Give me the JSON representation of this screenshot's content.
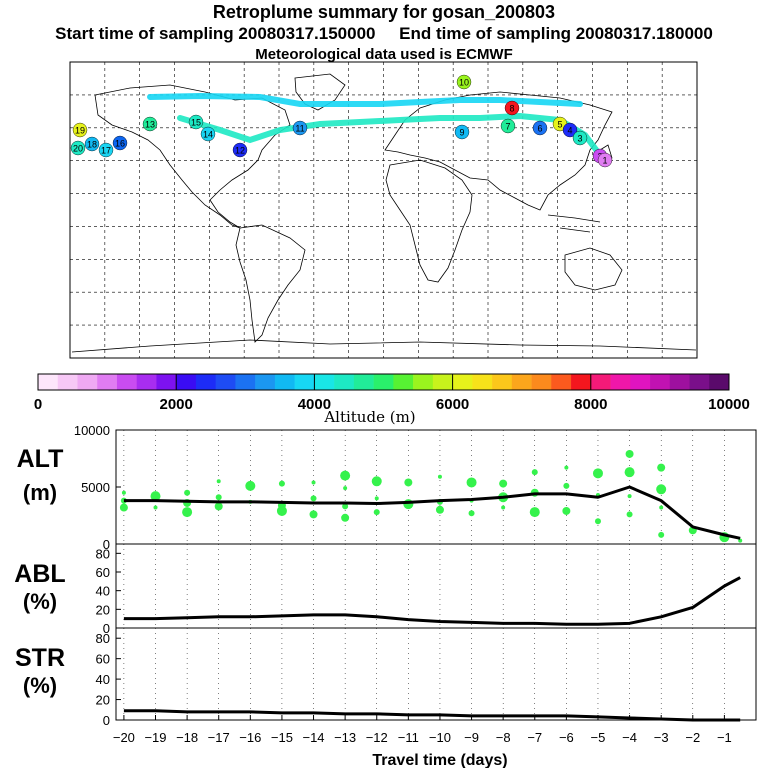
{
  "header": {
    "title": "Retroplume summary for gosan_200803",
    "sampling_line": "Start time of sampling 20080317.150000     End time of sampling 20080317.180000",
    "met_line": "Meteorological data used is ECMWF"
  },
  "colorbar": {
    "label": "Altitude (m)",
    "ticks": [
      "0",
      "2000",
      "4000",
      "6000",
      "8000",
      "10000"
    ],
    "colors": [
      "#fde6fb",
      "#f7c8f6",
      "#efa9f3",
      "#e07cf2",
      "#c94cf1",
      "#a82df0",
      "#7d12f0",
      "#3a0cf4",
      "#1d2cf7",
      "#1e4cf4",
      "#1b72f2",
      "#1b97f1",
      "#11b9f3",
      "#17d7f4",
      "#19e6e6",
      "#1de9c4",
      "#21ec99",
      "#2af06b",
      "#57f233",
      "#9af41e",
      "#c8f31c",
      "#e6f21b",
      "#f7e21a",
      "#fcc71b",
      "#fca61c",
      "#fc8a1d",
      "#fc5a1e",
      "#f4161e",
      "#f41a78",
      "#ef17a9",
      "#e014c0",
      "#c112b2",
      "#9e109f",
      "#7a0f8a",
      "#5a0a6b"
    ]
  },
  "map_plumes": [
    {
      "label": "16",
      "c": "#0d66f0"
    },
    {
      "label": "17",
      "c": "#1ad4f2"
    },
    {
      "label": "18",
      "c": "#11b9f3"
    },
    {
      "label": "19",
      "c": "#e6f21b"
    },
    {
      "label": "20",
      "c": "#1de9c4"
    },
    {
      "label": "15",
      "c": "#1de9c4"
    },
    {
      "label": "14",
      "c": "#1ad4f2"
    },
    {
      "label": "13",
      "c": "#21ec99"
    },
    {
      "label": "12",
      "c": "#1d2cf7"
    },
    {
      "label": "11",
      "c": "#1b97f1"
    },
    {
      "label": "10",
      "c": "#9af41e"
    },
    {
      "label": "9",
      "c": "#11b9f3"
    },
    {
      "label": "8",
      "c": "#f4161e"
    },
    {
      "label": "7",
      "c": "#21ec99"
    },
    {
      "label": "6",
      "c": "#1b72f2"
    },
    {
      "label": "5",
      "c": "#e6f21b"
    },
    {
      "label": "4",
      "c": "#1d2cf7"
    },
    {
      "label": "3",
      "c": "#1de9c4"
    },
    {
      "label": "2",
      "c": "#c94cf1"
    },
    {
      "label": "1",
      "c": "#e07cf2"
    }
  ],
  "chart_data": [
    {
      "type": "line",
      "panel": "ALT",
      "ylabel_lines": [
        "ALT",
        "(m)"
      ],
      "ylim": [
        0,
        10000
      ],
      "yticks": [
        0,
        5000,
        10000
      ],
      "ytick_labels": [
        "0",
        "5000",
        "10000"
      ],
      "x": [
        -20,
        -19,
        -18,
        -17,
        -16,
        -15,
        -14,
        -13,
        -12,
        -11,
        -10,
        -9,
        -8,
        -7,
        -6,
        -5,
        -4,
        -3,
        -2,
        -1,
        -0.5
      ],
      "values": [
        3800,
        3800,
        3750,
        3700,
        3700,
        3650,
        3600,
        3600,
        3550,
        3650,
        3800,
        3900,
        4100,
        4400,
        4400,
        4100,
        5000,
        3800,
        1500,
        800,
        500
      ],
      "scatter": [
        [
          -20,
          4500
        ],
        [
          -20,
          3800
        ],
        [
          -20,
          3200
        ],
        [
          -19,
          4200
        ],
        [
          -19,
          3200
        ],
        [
          -18,
          4500
        ],
        [
          -18,
          3600
        ],
        [
          -18,
          2800
        ],
        [
          -17,
          5500
        ],
        [
          -17,
          4100
        ],
        [
          -17,
          3300
        ],
        [
          -16,
          5100
        ],
        [
          -16,
          3700
        ],
        [
          -15,
          5300
        ],
        [
          -15,
          3400
        ],
        [
          -15,
          2900
        ],
        [
          -14,
          5400
        ],
        [
          -14,
          4000
        ],
        [
          -14,
          2600
        ],
        [
          -13,
          6000
        ],
        [
          -13,
          4900
        ],
        [
          -13,
          3300
        ],
        [
          -13,
          2300
        ],
        [
          -12,
          5500
        ],
        [
          -12,
          4000
        ],
        [
          -12,
          2800
        ],
        [
          -11,
          5400
        ],
        [
          -11,
          3500
        ],
        [
          -10,
          5900
        ],
        [
          -10,
          3700
        ],
        [
          -10,
          3000
        ],
        [
          -9,
          5400
        ],
        [
          -9,
          3800
        ],
        [
          -9,
          2700
        ],
        [
          -8,
          5300
        ],
        [
          -8,
          4100
        ],
        [
          -8,
          3200
        ],
        [
          -7,
          6300
        ],
        [
          -7,
          4500
        ],
        [
          -7,
          2800
        ],
        [
          -6,
          6700
        ],
        [
          -6,
          5100
        ],
        [
          -6,
          2900
        ],
        [
          -5,
          6200
        ],
        [
          -5,
          4300
        ],
        [
          -5,
          2000
        ],
        [
          -4,
          7900
        ],
        [
          -4,
          6300
        ],
        [
          -4,
          4200
        ],
        [
          -4,
          2600
        ],
        [
          -3,
          6700
        ],
        [
          -3,
          4800
        ],
        [
          -3,
          3200
        ],
        [
          -3,
          800
        ],
        [
          -2,
          1200
        ],
        [
          -1,
          600
        ],
        [
          -0.5,
          300
        ]
      ]
    },
    {
      "type": "line",
      "panel": "ABL",
      "ylabel_lines": [
        "ABL",
        "(%)"
      ],
      "ylim": [
        0,
        90
      ],
      "yticks": [
        0,
        20,
        40,
        60,
        80
      ],
      "ytick_labels": [
        "0",
        "20",
        "40",
        "60",
        "80"
      ],
      "x": [
        -20,
        -19,
        -18,
        -17,
        -16,
        -15,
        -14,
        -13,
        -12,
        -11,
        -10,
        -9,
        -8,
        -7,
        -6,
        -5,
        -4,
        -3,
        -2,
        -1,
        -0.5
      ],
      "values": [
        10,
        10,
        11,
        12,
        12,
        13,
        14,
        14,
        12,
        9,
        7,
        6,
        5,
        5,
        4,
        4,
        5,
        12,
        22,
        45,
        54
      ]
    },
    {
      "type": "line",
      "panel": "STR",
      "ylabel_lines": [
        "STR",
        "(%)"
      ],
      "ylim": [
        0,
        90
      ],
      "yticks": [
        0,
        20,
        40,
        60,
        80
      ],
      "ytick_labels": [
        "0",
        "20",
        "40",
        "60",
        "80"
      ],
      "x": [
        -20,
        -19,
        -18,
        -17,
        -16,
        -15,
        -14,
        -13,
        -12,
        -11,
        -10,
        -9,
        -8,
        -7,
        -6,
        -5,
        -4,
        -3,
        -2,
        -1,
        -0.5
      ],
      "values": [
        9,
        9,
        8,
        8,
        8,
        7,
        7,
        6,
        6,
        5,
        5,
        4,
        4,
        4,
        4,
        3,
        2,
        1,
        0,
        0,
        0
      ],
      "xlabel": "Travel time (days)",
      "xticks": [
        -20,
        -19,
        -18,
        -17,
        -16,
        -15,
        -14,
        -13,
        -12,
        -11,
        -10,
        -9,
        -8,
        -7,
        -6,
        -5,
        -4,
        -3,
        -2,
        -1
      ],
      "xtick_labels": [
        "−20",
        "−19",
        "−18",
        "−17",
        "−16",
        "−15",
        "−14",
        "−13",
        "−12",
        "−11",
        "−10",
        "−9",
        "−8",
        "−7",
        "−6",
        "−5",
        "−4",
        "−3",
        "−2",
        "−1"
      ]
    }
  ]
}
